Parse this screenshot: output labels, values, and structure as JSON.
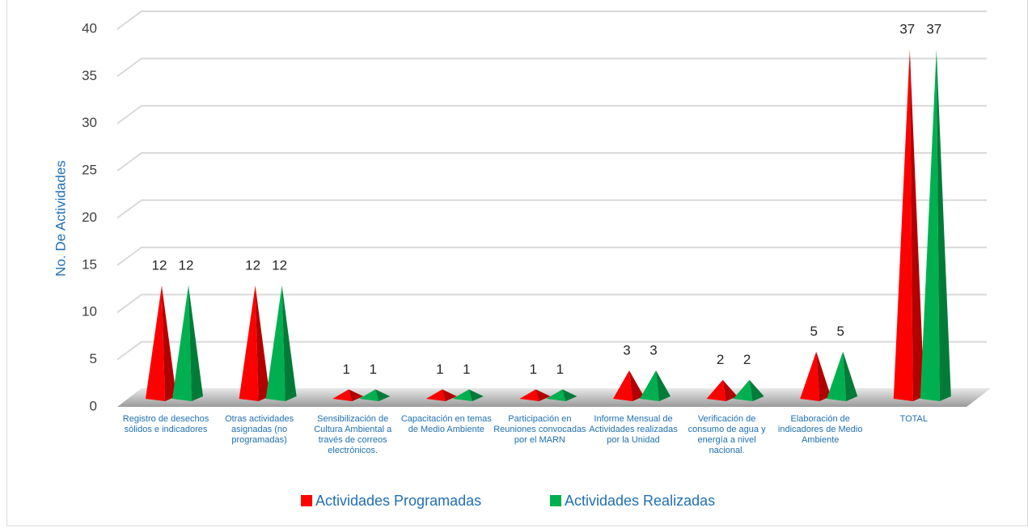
{
  "chart_data": {
    "type": "pyramid-bar",
    "y_axis_label": "No. De Actividades",
    "categories": [
      "Registro de desechos sólidos e indicadores",
      "Otras actividades asignadas (no programadas)",
      "Sensibilización de Cultura Ambiental a través de correos electrónicos.",
      "Capacitación en temas de Medio Ambiente",
      "Participación en Reuniones convocadas por el MARN",
      "Informe Mensual de Actividades realizadas por la Unidad",
      "Verificación de consumo de agua y energía  a nivel nacional.",
      "Elaboración de indicadores de Medio Ambiente",
      "TOTAL"
    ],
    "series": [
      {
        "name": "Actividades Programadas",
        "color": "#ff0000",
        "values": [
          12,
          12,
          1,
          1,
          1,
          3,
          2,
          5,
          37
        ]
      },
      {
        "name": "Actividades Realizadas",
        "color": "#00b050",
        "values": [
          12,
          12,
          1,
          1,
          1,
          3,
          2,
          5,
          37
        ]
      }
    ],
    "ylim": [
      0,
      40
    ],
    "yticks": [
      0,
      5,
      10,
      15,
      20,
      25,
      30,
      35,
      40
    ],
    "grid": true,
    "legend": "bottom"
  }
}
